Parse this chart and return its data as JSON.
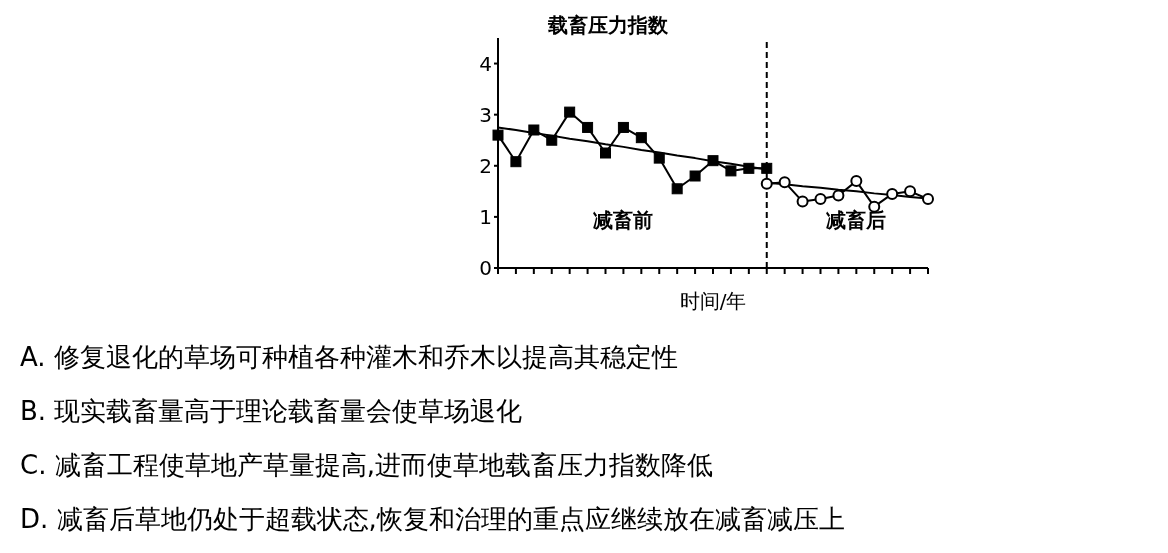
{
  "chart_data": {
    "type": "line",
    "ylabel": "载畜压力指数",
    "xlabel": "时间/年",
    "categories": [
      null,
      null,
      null,
      null,
      null,
      null,
      null,
      null,
      null,
      null,
      null,
      null,
      null,
      null,
      null,
      null,
      null,
      null,
      null,
      null,
      null,
      null,
      null,
      null,
      null
    ],
    "ylim": [
      0,
      4.5
    ],
    "yticks": [
      0,
      1,
      2,
      3,
      4
    ],
    "grid": false,
    "line_style": "solid",
    "series": [
      {
        "color": "#000000",
        "marker": "square",
        "values": [
          2.6,
          2.08,
          2.7,
          2.5,
          3.05,
          2.75,
          2.25,
          2.75,
          2.55,
          2.15,
          1.55,
          1.8,
          2.1,
          1.9,
          1.95,
          1.95,
          null,
          null,
          null,
          null,
          null,
          null,
          null,
          null,
          null
        ]
      },
      {
        "color": "#000000",
        "marker": "circle",
        "values": [
          null,
          null,
          null,
          null,
          null,
          null,
          null,
          null,
          null,
          null,
          null,
          null,
          null,
          null,
          null,
          1.65,
          1.68,
          1.3,
          1.35,
          1.42,
          1.7,
          1.2,
          1.45,
          1.5,
          1.35
        ]
      },
      {
        "color": "#000000",
        "marker": "none",
        "values": [
          2.75,
          2.7,
          2.64,
          2.59,
          2.53,
          2.48,
          2.42,
          2.37,
          2.31,
          2.26,
          2.2,
          2.15,
          2.09,
          2.04,
          1.98,
          1.93,
          null,
          null,
          null,
          null,
          null,
          null,
          null,
          null,
          null
        ]
      },
      {
        "color": "#000000",
        "marker": "none",
        "values": [
          null,
          null,
          null,
          null,
          null,
          null,
          null,
          null,
          null,
          null,
          null,
          null,
          null,
          null,
          null,
          1.67,
          1.64,
          1.6,
          1.57,
          1.53,
          1.5,
          1.46,
          1.43,
          1.39,
          1.36
        ]
      }
    ],
    "annotations": [
      "减畜前",
      "减畜后",
      "A. 修复退化的草场可种植各种灌木和乔木以提高其稳定性",
      "B. 现实载畜量高于理论载畜量会使草场退化",
      "C. 减畜工程使草地产草量提高,进而使草地载畜压力指数降低",
      "D. 减畜后草地仍处于超载状态,恢复和治理的重点应继续放在减畜减压上"
    ]
  }
}
